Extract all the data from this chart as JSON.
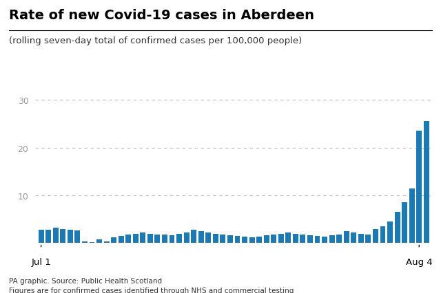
{
  "title": "Rate of new Covid-19 cases in Aberdeen",
  "subtitle": "(rolling seven-day total of confirmed cases per 100,000 people)",
  "footer1": "PA graphic. Source: Public Health Scotland",
  "footer2": "Figures are for confirmed cases identified through NHS and commercial testing",
  "bar_color": "#1b7ab3",
  "background_color": "#ffffff",
  "ylim": [
    0,
    32
  ],
  "yticks": [
    10,
    20,
    30
  ],
  "xlabel_jul1": "Jul 1",
  "xlabel_aug4": "Aug 4",
  "values": [
    2.8,
    2.8,
    3.2,
    3.0,
    2.8,
    2.6,
    0.4,
    0.2,
    0.8,
    0.3,
    1.2,
    1.5,
    1.8,
    2.0,
    2.2,
    2.0,
    1.8,
    1.8,
    1.6,
    2.0,
    2.2,
    2.8,
    2.5,
    2.2,
    2.0,
    1.8,
    1.6,
    1.5,
    1.4,
    1.2,
    1.4,
    1.6,
    1.8,
    2.0,
    2.2,
    2.0,
    1.8,
    1.6,
    1.5,
    1.4,
    1.6,
    1.8,
    2.5,
    2.2,
    2.0,
    1.8,
    3.0,
    3.5,
    4.5,
    6.5,
    8.5,
    11.5,
    23.5,
    25.5
  ],
  "jul1_index": 0,
  "aug4_index": 52,
  "title_fontsize": 14,
  "subtitle_fontsize": 9.5,
  "axis_fontsize": 9,
  "footer_fontsize": 7.5,
  "ytick_color": "#999999",
  "grid_color": "#bbbbbb",
  "tick_label_color": "#000000"
}
